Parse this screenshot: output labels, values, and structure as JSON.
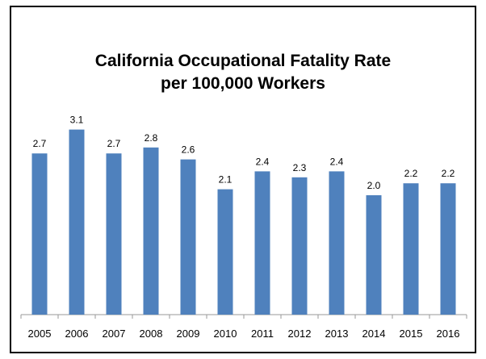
{
  "chart_data": {
    "type": "bar",
    "title": "California Occupational Fatality Rate",
    "subtitle": "per 100,000 Workers",
    "categories": [
      "2005",
      "2006",
      "2007",
      "2008",
      "2009",
      "2010",
      "2011",
      "2012",
      "2013",
      "2014",
      "2015",
      "2016"
    ],
    "values": [
      2.7,
      3.1,
      2.7,
      2.8,
      2.6,
      2.1,
      2.4,
      2.3,
      2.4,
      2.0,
      2.2,
      2.2
    ],
    "data_labels": [
      "2.7",
      "3.1",
      "2.7",
      "2.8",
      "2.6",
      "2.1",
      "2.4",
      "2.3",
      "2.4",
      "2.0",
      "2.2",
      "2.2"
    ],
    "xlabel": "",
    "ylabel": "",
    "ylim": [
      0,
      3.1
    ],
    "grid": false,
    "legend": "none",
    "bar_color": "#4f81bd"
  }
}
